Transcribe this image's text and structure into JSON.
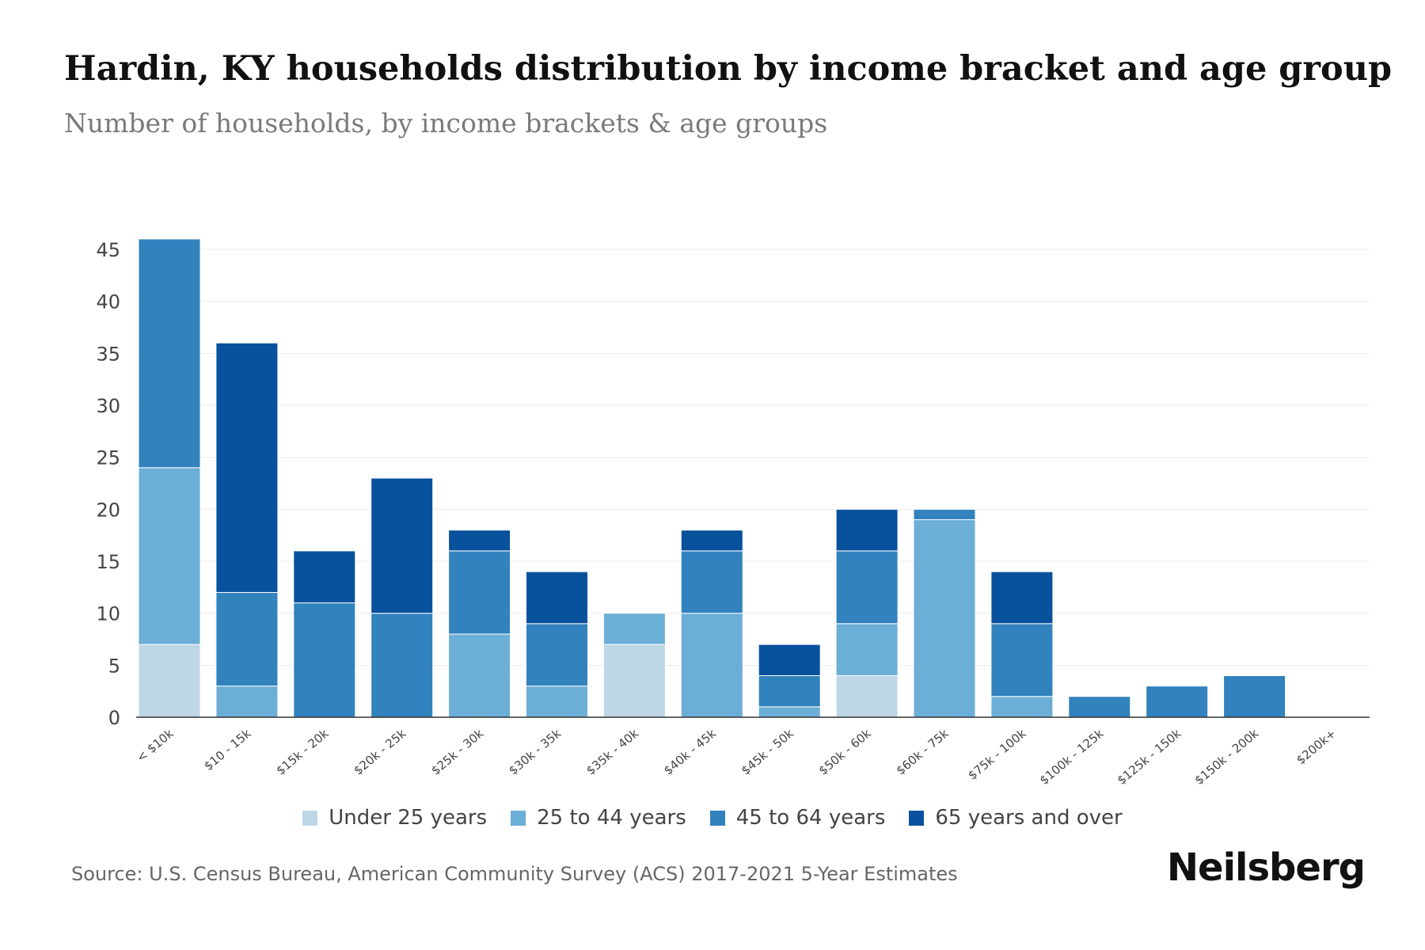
{
  "header": {
    "title": "Hardin, KY households distribution by income bracket and age group",
    "subtitle": "Number of households, by income brackets & age groups"
  },
  "footer": {
    "source": "Source: U.S. Census Bureau, American Community Survey (ACS) 2017-2021 5-Year Estimates",
    "brand": "Neilsberg"
  },
  "chart_data": {
    "type": "bar",
    "stacked": true,
    "title": "Hardin, KY households distribution by income bracket and age group",
    "subtitle": "Number of households, by income brackets & age groups",
    "xlabel": "",
    "ylabel": "",
    "ylim": [
      0,
      45
    ],
    "yticks": [
      0,
      5,
      10,
      15,
      20,
      25,
      30,
      35,
      40,
      45
    ],
    "grid": true,
    "legend_position": "bottom",
    "categories": [
      "< $10k",
      "$10 - 15k",
      "$15k - 20k",
      "$20k - 25k",
      "$25k - 30k",
      "$30k - 35k",
      "$35k - 40k",
      "$40k - 45k",
      "$45k - 50k",
      "$50k - 60k",
      "$60k - 75k",
      "$75k - 100k",
      "$100k - 125k",
      "$125k - 150k",
      "$150k - 200k",
      "$200k+"
    ],
    "series": [
      {
        "name": "Under 25 years",
        "color": "#bdd7e7",
        "values": [
          7,
          0,
          0,
          0,
          0,
          0,
          7,
          0,
          0,
          4,
          0,
          0,
          0,
          0,
          0,
          0
        ]
      },
      {
        "name": "25 to 44 years",
        "color": "#6baed6",
        "values": [
          17,
          3,
          0,
          0,
          8,
          3,
          3,
          10,
          1,
          5,
          19,
          2,
          0,
          0,
          0,
          0
        ]
      },
      {
        "name": "45 to 64 years",
        "color": "#3182bd",
        "values": [
          22,
          9,
          11,
          10,
          8,
          6,
          0,
          6,
          3,
          7,
          1,
          7,
          2,
          3,
          4,
          0
        ]
      },
      {
        "name": "65 years and over",
        "color": "#08519c",
        "values": [
          0,
          24,
          5,
          13,
          2,
          5,
          0,
          2,
          3,
          4,
          0,
          5,
          0,
          0,
          0,
          0
        ]
      }
    ]
  }
}
